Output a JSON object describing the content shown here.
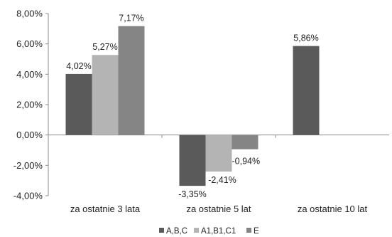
{
  "chart_data": {
    "type": "bar",
    "categories": [
      "za ostatnie 3 lata",
      "za ostatnie 5 lat",
      "za ostatnie 10 lat"
    ],
    "series": [
      {
        "name": "A,B,C",
        "color": "#5a5a5a",
        "values": [
          4.02,
          -3.35,
          5.86
        ],
        "labels": [
          "4,02%",
          "-3,35%",
          "5,86%"
        ]
      },
      {
        "name": "A1,B1,C1",
        "color": "#b4b4b4",
        "values": [
          5.27,
          -2.41,
          null
        ],
        "labels": [
          "5,27%",
          "-2,41%",
          ""
        ]
      },
      {
        "name": "E",
        "color": "#858585",
        "values": [
          7.17,
          -0.94,
          null
        ],
        "labels": [
          "7,17%",
          "-0,94%",
          ""
        ]
      }
    ],
    "ylim": [
      -4,
      8
    ],
    "yticks": [
      8,
      6,
      4,
      2,
      0,
      -2,
      -4
    ],
    "ytick_labels": [
      "8,00%",
      "6,00%",
      "4,00%",
      "2,00%",
      "0,00%",
      "-2,00%",
      "-4,00%"
    ],
    "title": "",
    "xlabel": "",
    "ylabel": "",
    "grid": false,
    "legend_position": "bottom"
  }
}
